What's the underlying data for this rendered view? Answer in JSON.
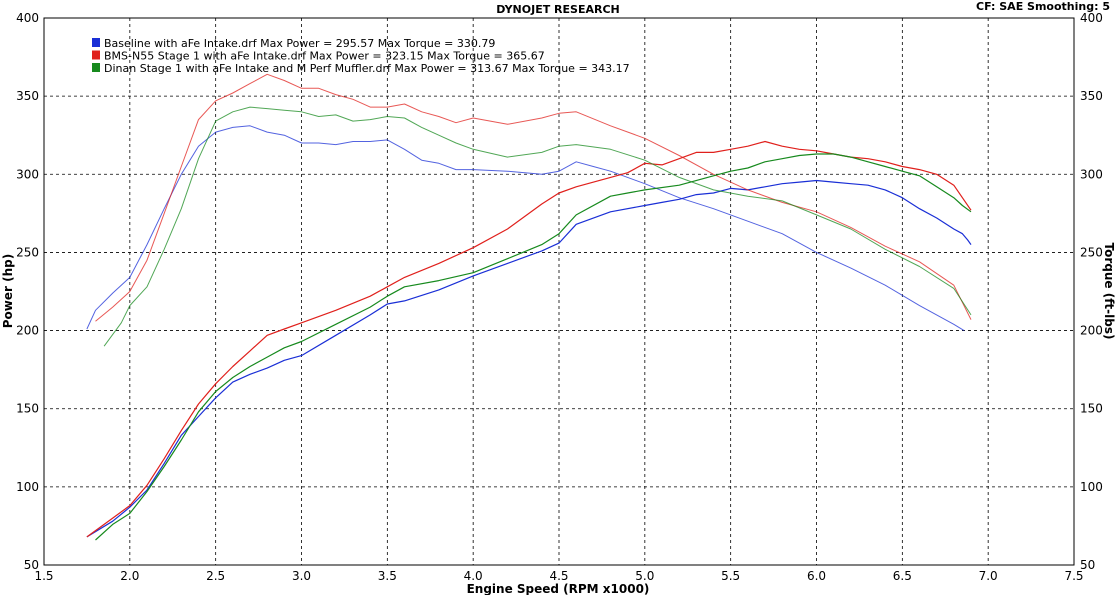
{
  "chart_data": {
    "type": "line",
    "title": "DYNOJET RESEARCH",
    "header_right": "CF: SAE   Smoothing: 5",
    "xlabel": "Engine Speed (RPM x1000)",
    "ylabel_left": "Power (hp)",
    "ylabel_right": "Torque (ft-lbs)",
    "xlim": [
      1.5,
      7.5
    ],
    "ylim": [
      50,
      400
    ],
    "xticks": [
      "1.5",
      "2.0",
      "2.5",
      "3.0",
      "3.5",
      "4.0",
      "4.5",
      "5.0",
      "5.5",
      "6.0",
      "6.5",
      "7.0",
      "7.5"
    ],
    "yticks": [
      "50",
      "100",
      "150",
      "200",
      "250",
      "300",
      "350",
      "400"
    ],
    "grid": true,
    "legend_placement": "top-left",
    "legend": [
      {
        "text": "Baseline with aFe Intake.drf Max Power = 295.57     Max Torque = 330.79",
        "color": "#1a2fd6"
      },
      {
        "text": "BMS-N55 Stage 1 with aFe Intake.drf Max Power = 323.15     Max Torque = 365.67",
        "color": "#e0201c"
      },
      {
        "text": "Dinan Stage 1 with aFe Intake and M Perf Muffler.drf Max Power = 313.67     Max Torque = 343.17",
        "color": "#178a1e"
      }
    ],
    "series": [
      {
        "name": "Baseline with aFe Intake.drf",
        "color": "#1a2fd6",
        "power": {
          "x": [
            1.75,
            1.9,
            2.0,
            2.1,
            2.2,
            2.3,
            2.4,
            2.5,
            2.6,
            2.7,
            2.8,
            2.9,
            3.0,
            3.2,
            3.4,
            3.5,
            3.6,
            3.8,
            4.0,
            4.2,
            4.4,
            4.5,
            4.6,
            4.8,
            5.0,
            5.1,
            5.2,
            5.3,
            5.4,
            5.5,
            5.6,
            5.7,
            5.8,
            5.9,
            6.0,
            6.1,
            6.2,
            6.3,
            6.4,
            6.5,
            6.6,
            6.7,
            6.8,
            6.85,
            6.88,
            6.9
          ],
          "y": [
            68,
            78,
            87,
            98,
            115,
            133,
            145,
            157,
            167,
            172,
            176,
            181,
            184,
            197,
            210,
            217,
            219,
            226,
            235,
            243,
            251,
            256,
            268,
            276,
            280,
            282,
            284,
            287,
            288,
            291,
            290,
            292,
            294,
            295,
            296,
            295,
            294,
            293,
            290,
            285,
            278,
            272,
            265,
            262,
            258,
            255
          ]
        },
        "torque": {
          "x": [
            1.75,
            1.8,
            1.9,
            2.0,
            2.1,
            2.2,
            2.3,
            2.4,
            2.5,
            2.6,
            2.7,
            2.8,
            2.9,
            3.0,
            3.1,
            3.2,
            3.3,
            3.4,
            3.5,
            3.6,
            3.7,
            3.8,
            3.9,
            4.0,
            4.2,
            4.4,
            4.5,
            4.6,
            4.7,
            4.8,
            5.0,
            5.2,
            5.4,
            5.6,
            5.8,
            6.0,
            6.2,
            6.4,
            6.6,
            6.8,
            6.86
          ],
          "y": [
            201,
            213,
            224,
            234,
            255,
            278,
            300,
            318,
            327,
            330,
            331,
            327,
            325,
            320,
            320,
            319,
            321,
            321,
            322,
            316,
            309,
            307,
            303,
            303,
            302,
            300,
            302,
            308,
            305,
            302,
            294,
            285,
            278,
            270,
            262,
            250,
            240,
            229,
            216,
            204,
            200
          ]
        }
      },
      {
        "name": "BMS-N55 Stage 1 with aFe Intake.drf",
        "color": "#e0201c",
        "power": {
          "x": [
            1.75,
            1.9,
            2.0,
            2.1,
            2.2,
            2.3,
            2.4,
            2.5,
            2.6,
            2.7,
            2.8,
            2.9,
            3.0,
            3.2,
            3.4,
            3.5,
            3.6,
            3.8,
            4.0,
            4.2,
            4.4,
            4.5,
            4.6,
            4.8,
            4.9,
            5.0,
            5.1,
            5.2,
            5.3,
            5.4,
            5.5,
            5.6,
            5.7,
            5.8,
            5.9,
            6.0,
            6.1,
            6.2,
            6.3,
            6.4,
            6.5,
            6.6,
            6.7,
            6.8,
            6.85,
            6.9
          ],
          "y": [
            68,
            80,
            88,
            101,
            118,
            136,
            153,
            166,
            177,
            187,
            197,
            201,
            205,
            213,
            222,
            228,
            234,
            243,
            253,
            265,
            281,
            288,
            292,
            298,
            301,
            307,
            306,
            310,
            314,
            314,
            316,
            318,
            321,
            318,
            316,
            315,
            313,
            311,
            310,
            308,
            305,
            303,
            300,
            293,
            285,
            277
          ]
        },
        "torque": {
          "x": [
            1.8,
            1.9,
            2.0,
            2.1,
            2.2,
            2.3,
            2.4,
            2.5,
            2.6,
            2.7,
            2.8,
            2.9,
            3.0,
            3.1,
            3.2,
            3.3,
            3.4,
            3.5,
            3.6,
            3.7,
            3.8,
            3.9,
            4.0,
            4.2,
            4.4,
            4.5,
            4.6,
            4.8,
            5.0,
            5.2,
            5.4,
            5.6,
            5.8,
            6.0,
            6.2,
            6.4,
            6.6,
            6.8,
            6.9
          ],
          "y": [
            206,
            215,
            225,
            245,
            275,
            305,
            335,
            347,
            352,
            358,
            364,
            360,
            355,
            355,
            351,
            348,
            343,
            343,
            345,
            340,
            337,
            333,
            336,
            332,
            336,
            339,
            340,
            331,
            323,
            312,
            300,
            290,
            282,
            276,
            266,
            254,
            244,
            229,
            207
          ]
        }
      },
      {
        "name": "Dinan Stage 1 with aFe Intake and M Perf Muffler.drf",
        "color": "#178a1e",
        "power": {
          "x": [
            1.8,
            1.9,
            2.0,
            2.1,
            2.2,
            2.3,
            2.4,
            2.5,
            2.6,
            2.7,
            2.8,
            2.9,
            3.0,
            3.2,
            3.4,
            3.5,
            3.6,
            3.8,
            4.0,
            4.2,
            4.4,
            4.5,
            4.6,
            4.8,
            4.9,
            5.0,
            5.2,
            5.4,
            5.5,
            5.6,
            5.7,
            5.8,
            5.9,
            6.0,
            6.1,
            6.2,
            6.3,
            6.4,
            6.5,
            6.6,
            6.7,
            6.8,
            6.85,
            6.9
          ],
          "y": [
            66,
            76,
            83,
            97,
            113,
            130,
            148,
            161,
            170,
            177,
            183,
            189,
            193,
            204,
            215,
            222,
            228,
            232,
            237,
            246,
            255,
            262,
            274,
            286,
            288,
            290,
            293,
            299,
            302,
            304,
            308,
            310,
            312,
            313,
            313,
            311,
            308,
            305,
            302,
            299,
            292,
            285,
            280,
            276
          ]
        },
        "torque": {
          "x": [
            1.85,
            1.95,
            2.0,
            2.1,
            2.2,
            2.3,
            2.4,
            2.5,
            2.6,
            2.7,
            2.8,
            2.9,
            3.0,
            3.1,
            3.2,
            3.3,
            3.4,
            3.5,
            3.6,
            3.7,
            3.8,
            3.9,
            4.0,
            4.2,
            4.4,
            4.5,
            4.6,
            4.8,
            5.0,
            5.2,
            5.4,
            5.6,
            5.8,
            6.0,
            6.2,
            6.4,
            6.6,
            6.8,
            6.9
          ],
          "y": [
            190,
            205,
            216,
            228,
            252,
            278,
            310,
            334,
            340,
            343,
            342,
            341,
            340,
            337,
            338,
            334,
            335,
            337,
            336,
            330,
            325,
            320,
            316,
            311,
            314,
            318,
            319,
            316,
            309,
            298,
            290,
            286,
            283,
            274,
            265,
            252,
            241,
            227,
            210
          ]
        }
      }
    ]
  }
}
